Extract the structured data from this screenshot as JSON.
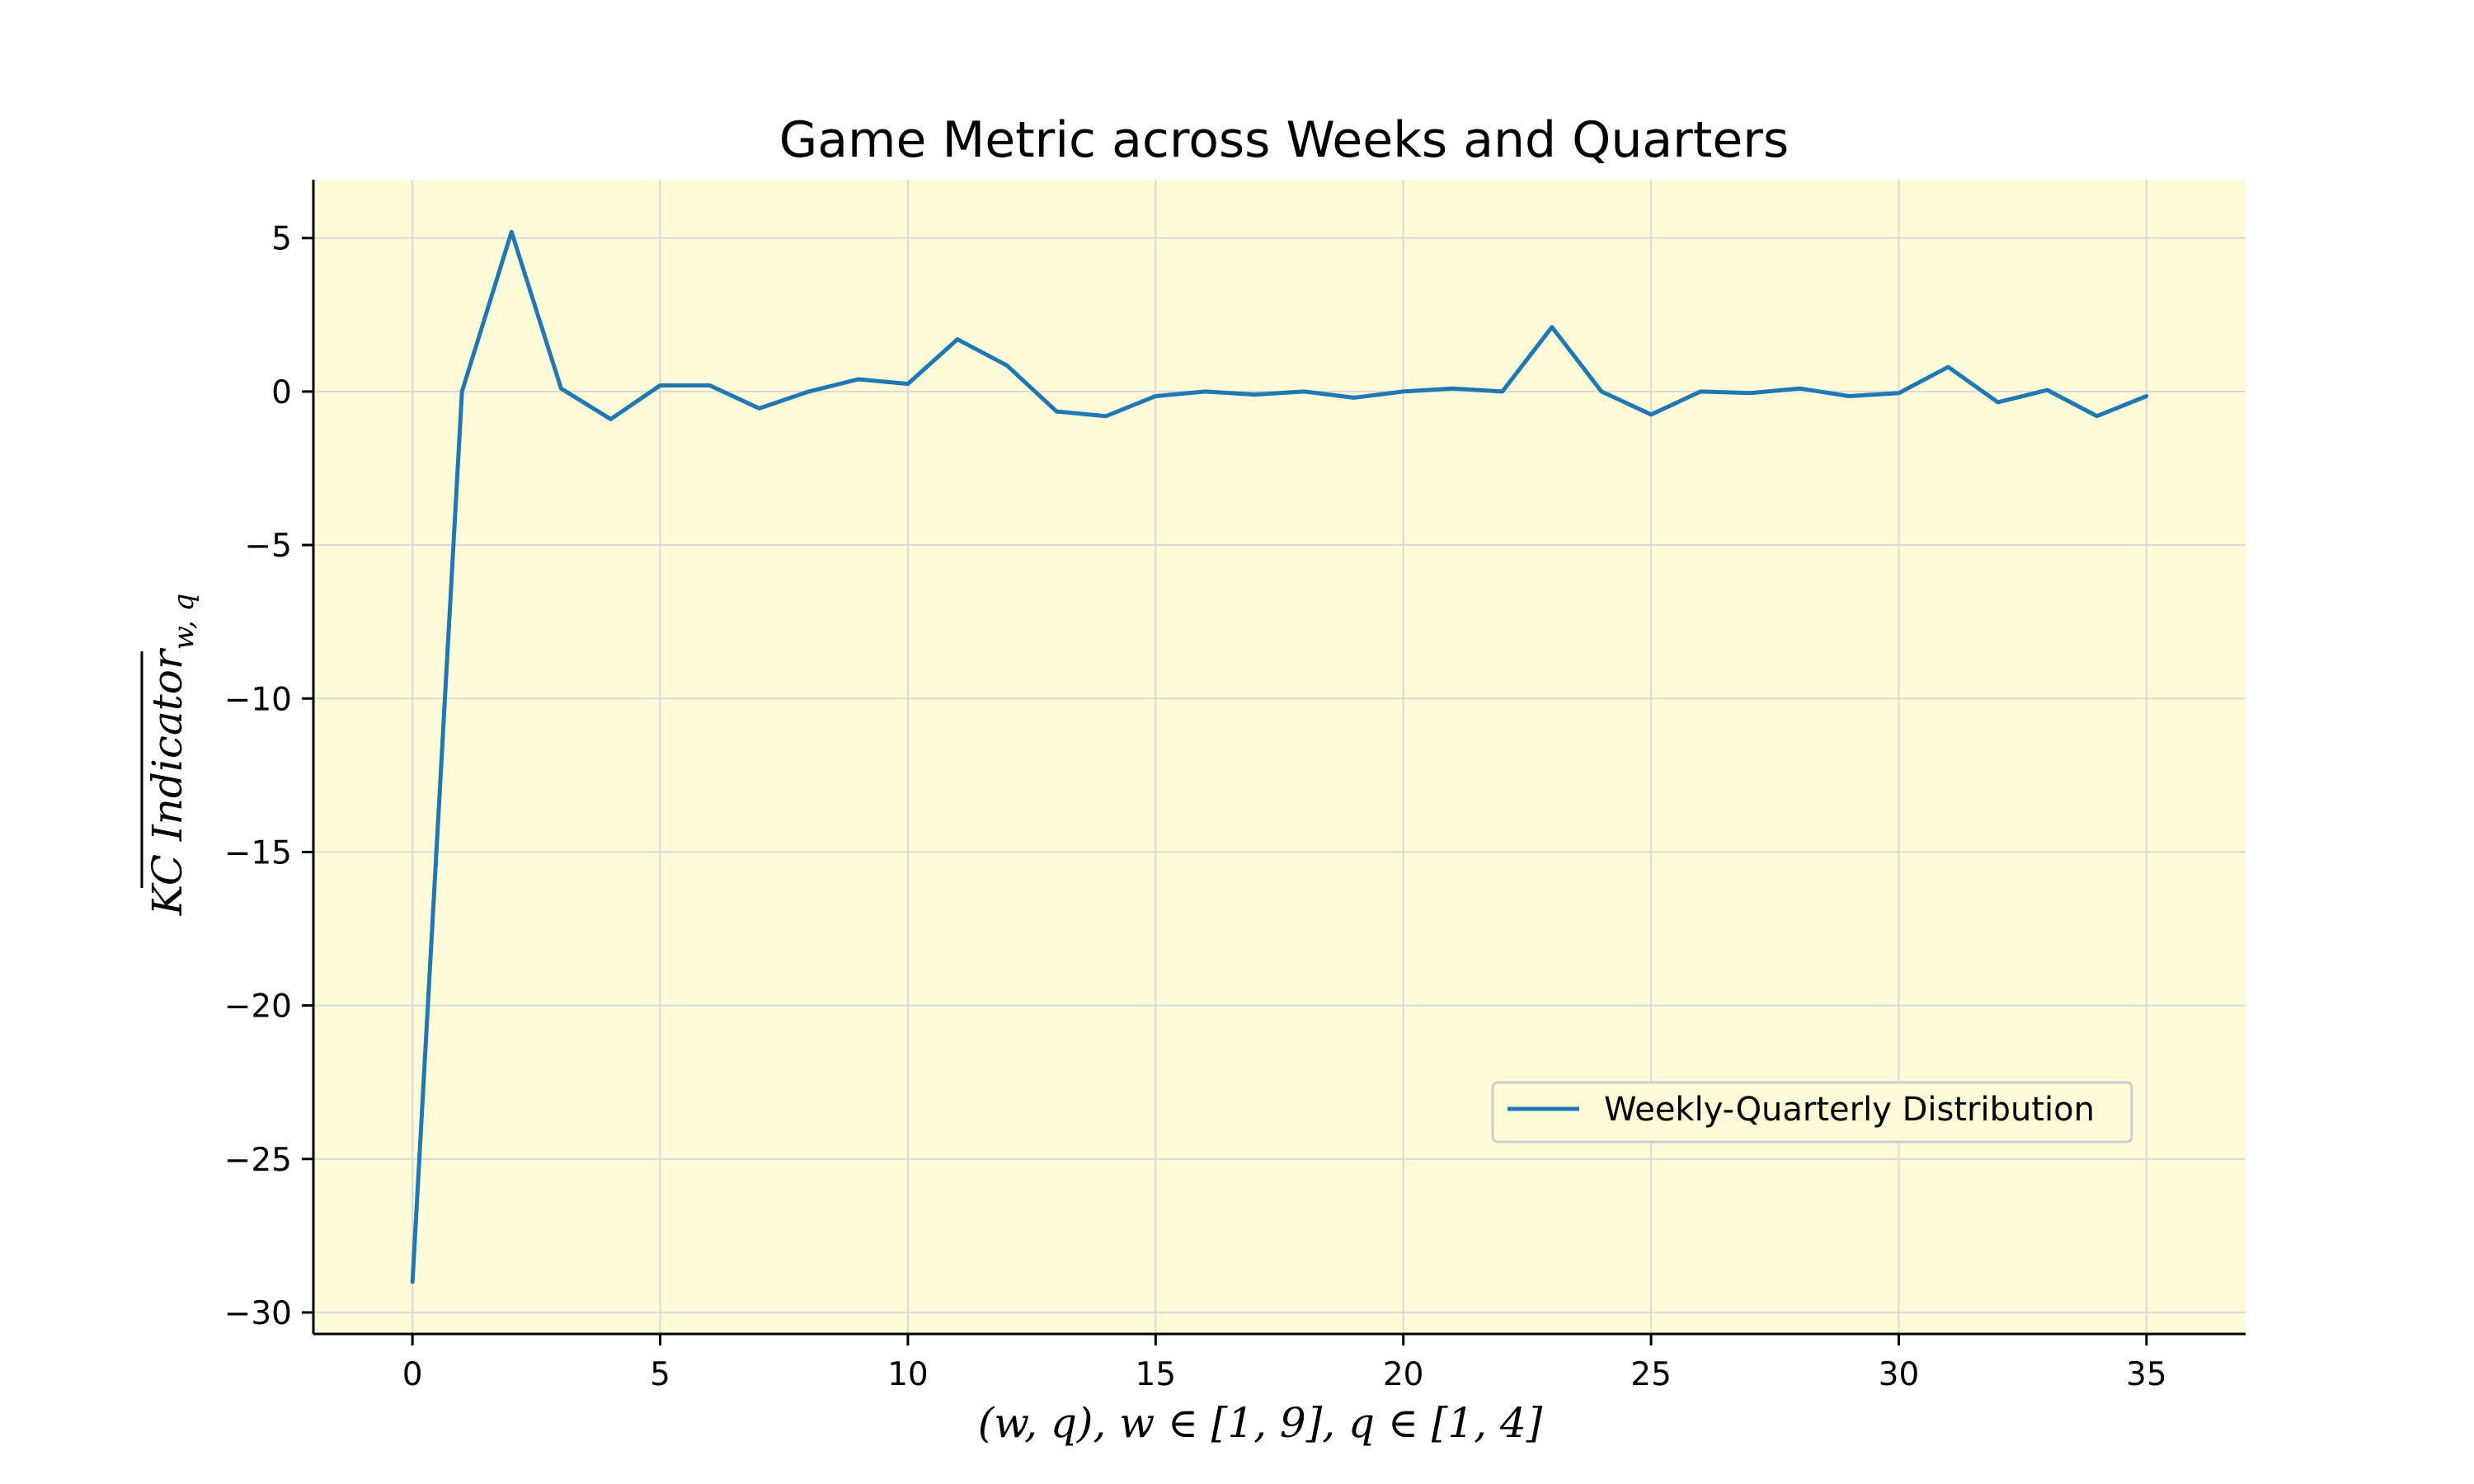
{
  "chart_data": {
    "type": "line",
    "title": "Game Metric across Weeks and Quarters",
    "xlabel": "(w, q), w ∈ [1, 9], q ∈ [1, 4]",
    "ylabel": "KC Indicator",
    "ylabel_subscript": "w, q",
    "xlim": [
      -2,
      37
    ],
    "ylim": [
      -30.7,
      6.9
    ],
    "xticks": [
      0,
      5,
      10,
      15,
      20,
      25,
      30,
      35
    ],
    "yticks": [
      5,
      0,
      -5,
      -10,
      -15,
      -20,
      -25,
      -30
    ],
    "grid": true,
    "legend_position": "lower-right",
    "background_color": "#fdfbd8",
    "line_color": "#1f77b4",
    "series": [
      {
        "name": "Weekly-Quarterly Distribution",
        "x": [
          0,
          1,
          2,
          3,
          4,
          5,
          6,
          7,
          8,
          9,
          10,
          11,
          12,
          13,
          14,
          15,
          16,
          17,
          18,
          19,
          20,
          21,
          22,
          23,
          24,
          25,
          26,
          27,
          28,
          29,
          30,
          31,
          32,
          33,
          34,
          35
        ],
        "values": [
          -29.0,
          0.0,
          5.2,
          0.1,
          -0.9,
          0.2,
          0.2,
          -0.55,
          0.0,
          0.4,
          0.25,
          1.7,
          0.85,
          -0.65,
          -0.8,
          -0.15,
          0.0,
          -0.1,
          0.0,
          -0.2,
          0.0,
          0.1,
          0.0,
          2.1,
          0.0,
          -0.75,
          0.0,
          -0.05,
          0.1,
          -0.15,
          -0.05,
          0.8,
          -0.35,
          0.05,
          -0.8,
          -0.15
        ]
      }
    ]
  }
}
